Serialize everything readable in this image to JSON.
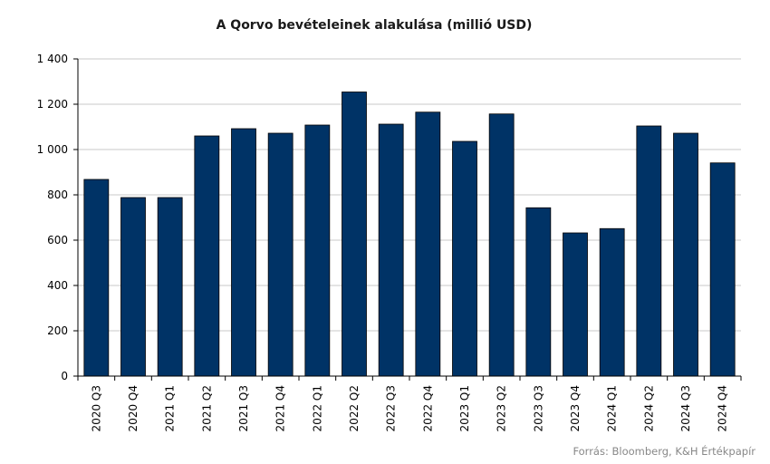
{
  "chart_data": {
    "type": "bar",
    "title": "A Qorvo bevételeinek  alakulása (millió USD)",
    "xlabel": "",
    "ylabel": "",
    "categories": [
      "2020 Q3",
      "2020 Q4",
      "2021 Q1",
      "2021 Q2",
      "2021 Q3",
      "2021 Q4",
      "2022 Q1",
      "2022 Q2",
      "2022 Q3",
      "2022 Q4",
      "2023 Q1",
      "2023 Q2",
      "2023 Q3",
      "2023 Q4",
      "2024 Q1",
      "2024 Q2",
      "2024 Q3",
      "2024 Q4"
    ],
    "values": [
      868,
      788,
      788,
      1060,
      1092,
      1072,
      1108,
      1254,
      1112,
      1165,
      1036,
      1157,
      743,
      632,
      651,
      1104,
      1072,
      941
    ],
    "ylim": [
      0,
      1400
    ],
    "yticks": [
      0,
      200,
      400,
      600,
      800,
      1000,
      1200,
      1400
    ],
    "ytick_labels": [
      "0",
      "200",
      "400",
      "600",
      "800",
      "1 000",
      "1 200",
      "1 400"
    ],
    "grid": true,
    "legend": "none",
    "bar_color": "#003366"
  },
  "source": "Forrás: Bloomberg, K&H Értékpapír"
}
